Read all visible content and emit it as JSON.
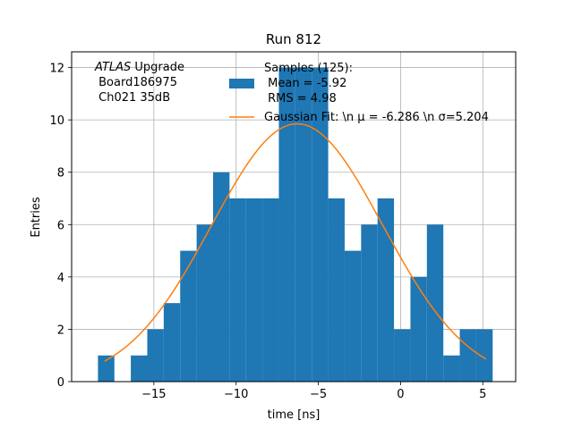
{
  "chart_data": {
    "type": "histogram",
    "title": "Run 812",
    "xlabel": "time [ns]",
    "ylabel": "Entries",
    "xlim": [
      -20.0,
      7.0
    ],
    "ylim": [
      0,
      12.6
    ],
    "xticks": [
      -15,
      -10,
      -5,
      0,
      5
    ],
    "xtick_labels": [
      "−15",
      "−10",
      "−5",
      "0",
      "5"
    ],
    "yticks": [
      0,
      2,
      4,
      6,
      8,
      10,
      12
    ],
    "ytick_labels": [
      "0",
      "2",
      "4",
      "6",
      "8",
      "10",
      "12"
    ],
    "grid": true,
    "bin_edges": [
      -18.4,
      -17.4,
      -16.4,
      -15.4,
      -14.4,
      -13.4,
      -12.4,
      -11.4,
      -10.4,
      -9.4,
      -8.4,
      -7.4,
      -6.4,
      -5.4,
      -4.4,
      -3.4,
      -2.4,
      -1.4,
      -0.4,
      0.6,
      1.6,
      2.6,
      3.6,
      4.6,
      5.6
    ],
    "counts": [
      1,
      0,
      1,
      2,
      3,
      5,
      6,
      8,
      7,
      7,
      7,
      12,
      12,
      12,
      7,
      5,
      6,
      7,
      2,
      4,
      6,
      1,
      2,
      2
    ],
    "hist_color": "#1f77b4",
    "fit": {
      "mu": -6.286,
      "sigma": 5.204,
      "amplitude": 9.85,
      "x_range": [
        -18.0,
        5.2
      ],
      "color": "#ff7f0e"
    },
    "annotation": {
      "line1_italic": "ATLAS",
      "line1_rest": " Upgrade",
      "line2": " Board186975",
      "line3": " Ch021 35dB"
    },
    "legend": {
      "position": "top-right",
      "hist_label_lines": [
        "Samples (125):",
        " Mean = -5.92",
        " RMS = 4.98"
      ],
      "fit_label": "Gaussian Fit: \\n μ = -6.286 \\n σ=5.204"
    }
  }
}
